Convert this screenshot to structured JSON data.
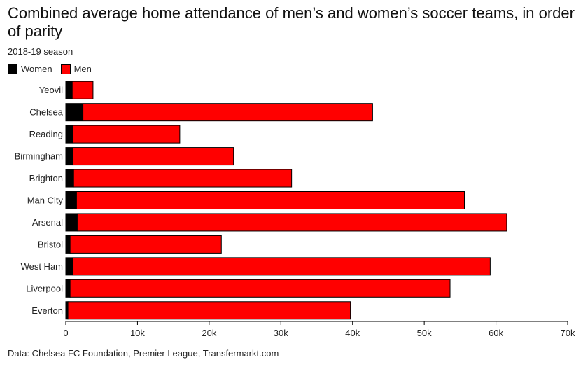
{
  "header": {
    "title": "Combined average home attendance of men’s and women’s soccer teams, in order of parity",
    "subtitle": "2018-19 season"
  },
  "legend": {
    "women_label": "Women",
    "men_label": "Men"
  },
  "footer": {
    "source": "Data: Chelsea FC Foundation, Premier League, Transfermarkt.com"
  },
  "colors": {
    "women": "#000000",
    "men": "#ff0000"
  },
  "chart_data": {
    "type": "bar",
    "orientation": "horizontal",
    "stacked": true,
    "title": "Combined average home attendance of men’s and women’s soccer teams, in order of parity",
    "subtitle": "2018-19 season",
    "categories": [
      "Yeovil",
      "Chelsea",
      "Reading",
      "Birmingham",
      "Brighton",
      "Man City",
      "Arsenal",
      "Bristol",
      "West Ham",
      "Liverpool",
      "Everton"
    ],
    "series": [
      {
        "name": "Women",
        "values": [
          900,
          2400,
          1000,
          1000,
          1100,
          1500,
          1600,
          600,
          1000,
          600,
          300
        ]
      },
      {
        "name": "Men",
        "values": [
          2900,
          40400,
          14900,
          22400,
          30400,
          54100,
          59900,
          21100,
          58200,
          53000,
          39400
        ]
      }
    ],
    "xlim": [
      0,
      70000
    ],
    "xticks": [
      0,
      10000,
      20000,
      30000,
      40000,
      50000,
      60000,
      70000
    ],
    "xtick_labels": [
      "0",
      "10k",
      "20k",
      "30k",
      "40k",
      "50k",
      "60k",
      "70k"
    ],
    "xlabel": "",
    "ylabel": "",
    "legend": "top-left",
    "grid": false
  }
}
